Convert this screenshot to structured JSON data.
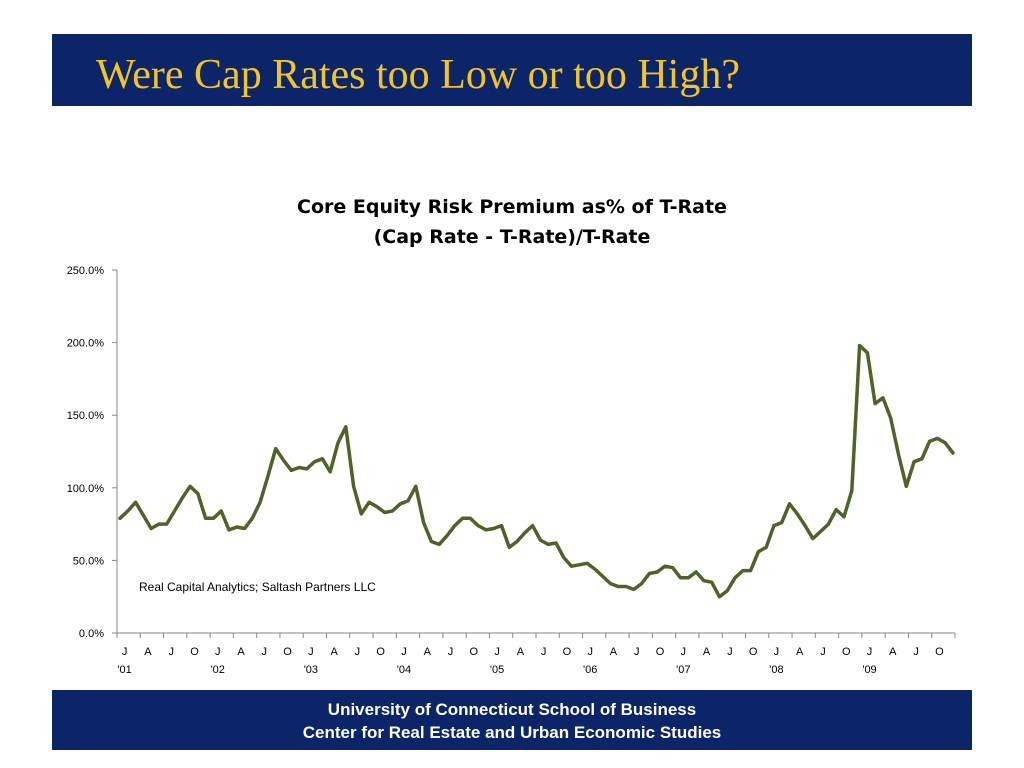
{
  "slide": {
    "title": "Were Cap Rates too Low or too High?",
    "title_color": "#f2c424",
    "header_bg": "#0c2468"
  },
  "footer": {
    "line1": "University of Connecticut School of Business",
    "line2": "Center for Real Estate and Urban Economic Studies"
  },
  "chart_data": {
    "type": "line",
    "title_line1": "Core Equity Risk Premium as% of T-Rate",
    "title_line2": "(Cap Rate - T-Rate)/T-Rate",
    "xlabel": "",
    "ylabel": "",
    "ylim": [
      0,
      250
    ],
    "y_ticks": [
      "0.0%",
      "50.0%",
      "100.0%",
      "150.0%",
      "200.0%",
      "250.0%"
    ],
    "month_labels": [
      "J",
      "A",
      "J",
      "O",
      "J",
      "A",
      "J",
      "O",
      "J",
      "A",
      "J",
      "O",
      "J",
      "A",
      "J",
      "O",
      "J",
      "A",
      "J",
      "O",
      "J",
      "A",
      "J",
      "O",
      "J",
      "A",
      "J",
      "O",
      "J",
      "A",
      "J",
      "O",
      "J",
      "A",
      "J",
      "O"
    ],
    "year_labels": [
      "'01",
      "'02",
      "'03",
      "'04",
      "'05",
      "'06",
      "'07",
      "'08",
      "'09"
    ],
    "annotation": "Real Capital Analytics; Saltash Partners LLC",
    "line_color": "#4f6228",
    "grid": false,
    "series": [
      {
        "values": [
          79,
          84,
          90,
          81,
          72,
          75,
          75,
          84,
          93,
          101,
          96,
          79,
          79,
          84,
          71,
          73,
          72,
          79,
          90,
          108,
          127,
          119,
          112,
          114,
          113,
          118,
          120,
          111,
          131,
          142,
          101,
          82,
          90,
          87,
          83,
          84,
          89,
          91,
          101,
          76,
          63,
          61,
          67,
          74,
          79,
          79,
          74,
          71,
          72,
          74,
          59,
          63,
          69,
          74,
          64,
          61,
          62,
          52,
          46,
          47,
          48,
          44,
          39,
          34,
          32,
          32,
          30,
          34,
          41,
          42,
          46,
          45,
          38,
          38,
          42,
          36,
          35,
          25,
          29,
          38,
          43,
          43,
          56,
          59,
          74,
          76,
          89,
          82,
          74,
          65,
          70,
          75,
          85,
          80,
          98,
          198,
          193,
          158,
          162,
          148,
          123,
          101,
          118,
          120,
          132,
          134,
          131,
          124
        ]
      }
    ]
  }
}
